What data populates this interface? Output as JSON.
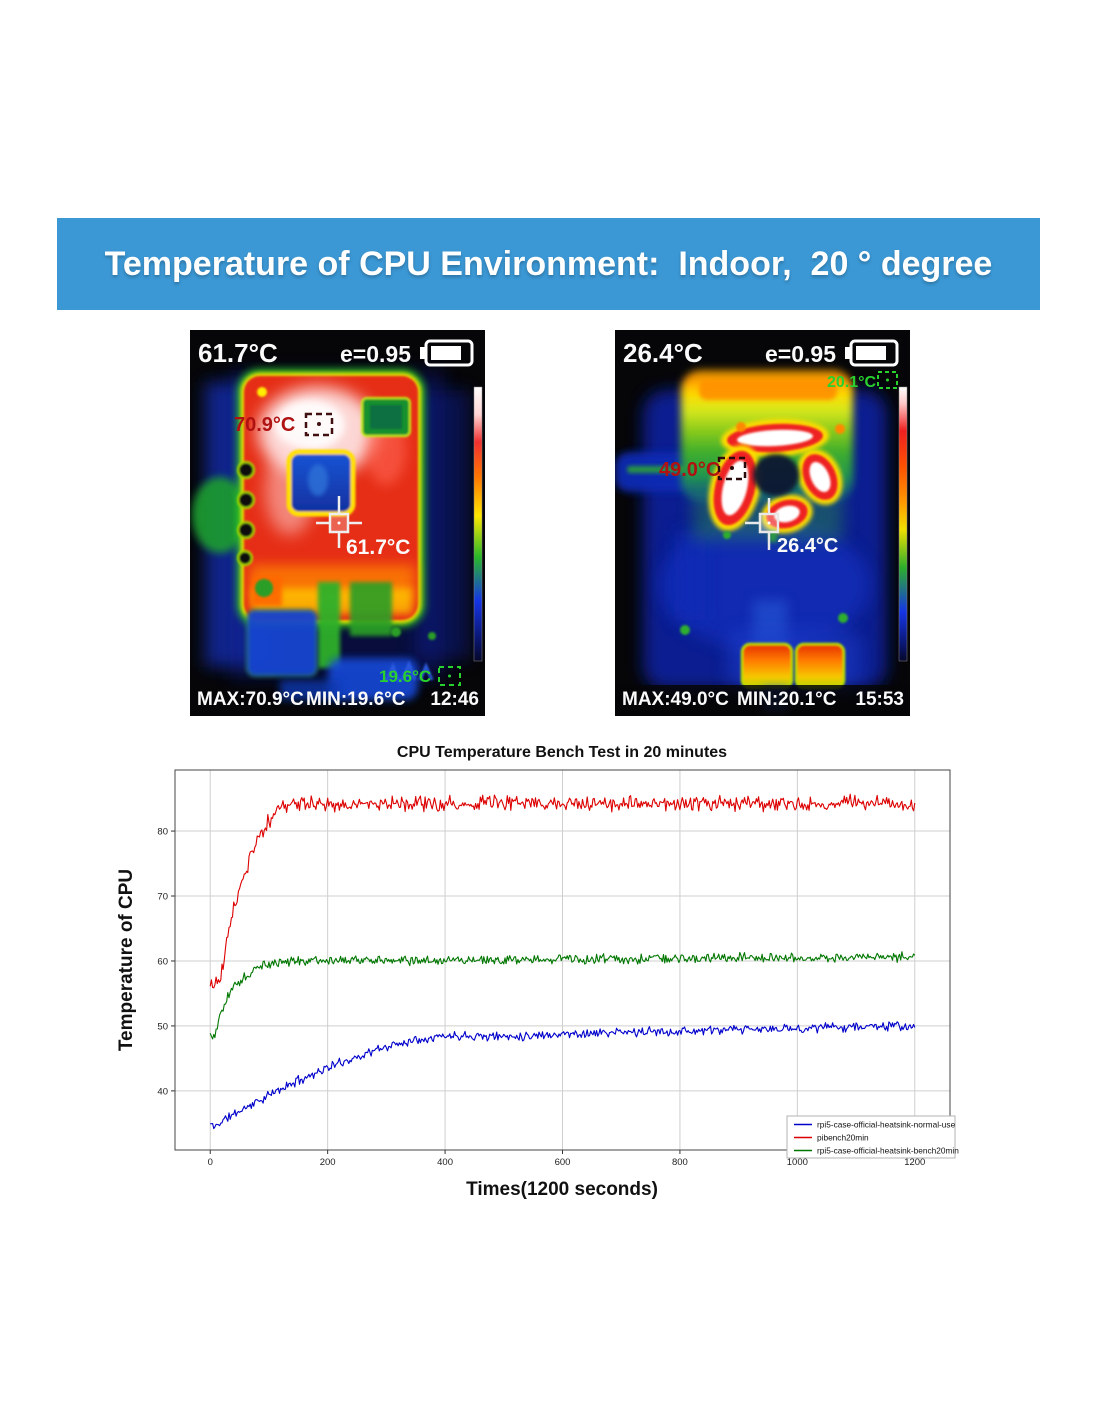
{
  "banner": {
    "text": "Temperature of CPU Environment:  Indoor,  20 ° degree",
    "bg_color": "#3b98d5"
  },
  "thermal_left": {
    "header_temp": "61.7°C",
    "emissivity": "e=0.95",
    "max_spot_label": "70.9°C",
    "center_spot_label": "61.7°C",
    "min_spot_label": "19.6°C",
    "footer_max": "MAX:70.9°C",
    "footer_min": "MIN:19.6°C",
    "footer_time": "12:46"
  },
  "thermal_right": {
    "header_temp": "26.4°C",
    "emissivity": "e=0.95",
    "min_spot_label": "20.1°C",
    "max_spot_label": "49.0°C",
    "center_spot_label": "26.4°C",
    "footer_max": "MAX:49.0°C",
    "footer_min": "MIN:20.1°C",
    "footer_time": "15:53"
  },
  "chart_data": {
    "type": "line",
    "title": "CPU Temperature Bench Test in 20 minutes",
    "xlabel": "Times(1200 seconds)",
    "ylabel": "Temperature of CPU",
    "xlim": [
      -60,
      1260
    ],
    "ylim": [
      30.9,
      89.4
    ],
    "xticks": [
      0,
      200,
      400,
      600,
      800,
      1000,
      1200
    ],
    "yticks": [
      40,
      50,
      60,
      70,
      80
    ],
    "grid": true,
    "legend_position": "lower right",
    "sample_step_s": 2,
    "series": [
      {
        "name": "rpi5-case-official-heatsink-normal-use",
        "color": "#0000cc",
        "noise": 0.85,
        "keypoints": [
          [
            0,
            34.9
          ],
          [
            8,
            34.4
          ],
          [
            16,
            35.1
          ],
          [
            30,
            35.9
          ],
          [
            50,
            36.9
          ],
          [
            70,
            37.9
          ],
          [
            90,
            38.8
          ],
          [
            110,
            39.8
          ],
          [
            130,
            40.7
          ],
          [
            150,
            41.6
          ],
          [
            170,
            42.4
          ],
          [
            190,
            43.2
          ],
          [
            210,
            43.9
          ],
          [
            230,
            44.6
          ],
          [
            250,
            45.2
          ],
          [
            270,
            45.9
          ],
          [
            290,
            46.5
          ],
          [
            310,
            47.0
          ],
          [
            330,
            47.5
          ],
          [
            350,
            47.9
          ],
          [
            370,
            48.2
          ],
          [
            390,
            48.4
          ],
          [
            415,
            48.5
          ],
          [
            440,
            48.6
          ],
          [
            470,
            48.4
          ],
          [
            500,
            48.4
          ],
          [
            540,
            48.5
          ],
          [
            580,
            48.7
          ],
          [
            620,
            48.8
          ],
          [
            660,
            48.9
          ],
          [
            700,
            49.0
          ],
          [
            750,
            49.1
          ],
          [
            800,
            49.2
          ],
          [
            850,
            49.3
          ],
          [
            900,
            49.4
          ],
          [
            950,
            49.5
          ],
          [
            1000,
            49.6
          ],
          [
            1050,
            49.8
          ],
          [
            1100,
            49.9
          ],
          [
            1150,
            50.0
          ],
          [
            1200,
            49.8
          ]
        ]
      },
      {
        "name": "pibench20min",
        "color": "#dd0000",
        "noise": 1.4,
        "keypoints": [
          [
            0,
            56.4
          ],
          [
            6,
            56.1
          ],
          [
            10,
            56.9
          ],
          [
            14,
            57.3
          ],
          [
            18,
            57.1
          ],
          [
            22,
            59.5
          ],
          [
            28,
            63.0
          ],
          [
            34,
            65.8
          ],
          [
            40,
            68.0
          ],
          [
            46,
            70.0
          ],
          [
            52,
            71.8
          ],
          [
            58,
            73.3
          ],
          [
            64,
            74.8
          ],
          [
            70,
            76.2
          ],
          [
            76,
            77.5
          ],
          [
            82,
            78.7
          ],
          [
            88,
            79.8
          ],
          [
            94,
            80.7
          ],
          [
            100,
            81.6
          ],
          [
            106,
            82.4
          ],
          [
            112,
            83.1
          ],
          [
            118,
            83.6
          ],
          [
            126,
            84.0
          ],
          [
            140,
            84.1
          ],
          [
            170,
            84.2
          ],
          [
            220,
            84.2
          ],
          [
            300,
            84.3
          ],
          [
            400,
            84.2
          ],
          [
            500,
            84.3
          ],
          [
            600,
            84.2
          ],
          [
            700,
            84.3
          ],
          [
            800,
            84.2
          ],
          [
            900,
            84.3
          ],
          [
            1000,
            84.2
          ],
          [
            1100,
            84.3
          ],
          [
            1200,
            84.0
          ]
        ]
      },
      {
        "name": "rpi5-case-official-heatsink-bench20min",
        "color": "#007700",
        "noise": 0.85,
        "keypoints": [
          [
            0,
            48.7
          ],
          [
            4,
            48.1
          ],
          [
            8,
            48.4
          ],
          [
            12,
            49.8
          ],
          [
            16,
            51.2
          ],
          [
            20,
            52.4
          ],
          [
            26,
            53.8
          ],
          [
            32,
            54.8
          ],
          [
            40,
            55.8
          ],
          [
            48,
            56.6
          ],
          [
            56,
            57.3
          ],
          [
            66,
            58.1
          ],
          [
            76,
            58.7
          ],
          [
            88,
            59.2
          ],
          [
            100,
            59.6
          ],
          [
            115,
            59.8
          ],
          [
            130,
            59.9
          ],
          [
            170,
            60.0
          ],
          [
            240,
            60.0
          ],
          [
            320,
            60.1
          ],
          [
            420,
            60.1
          ],
          [
            520,
            60.2
          ],
          [
            620,
            60.3
          ],
          [
            720,
            60.3
          ],
          [
            820,
            60.4
          ],
          [
            920,
            60.5
          ],
          [
            1020,
            60.5
          ],
          [
            1120,
            60.6
          ],
          [
            1200,
            60.6
          ]
        ]
      }
    ]
  }
}
